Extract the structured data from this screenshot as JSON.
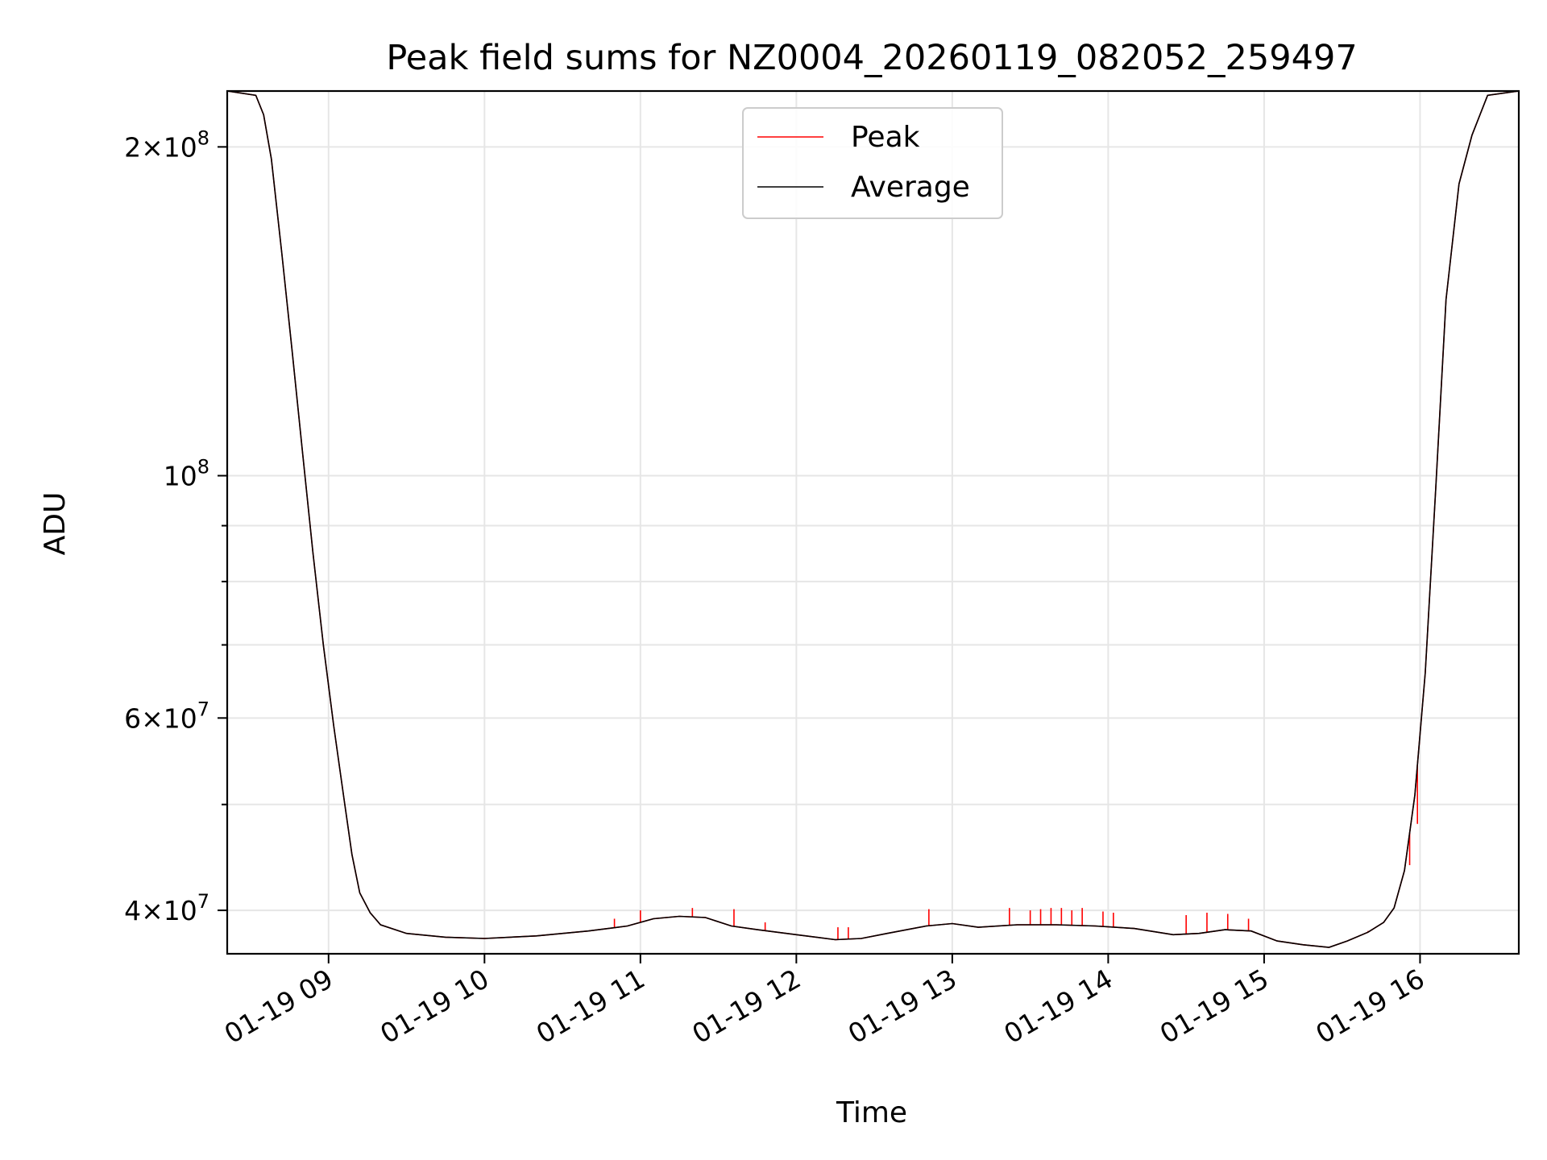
{
  "chart_data": {
    "type": "line",
    "title": "Peak field sums for NZ0004_20260119_082052_259497",
    "xlabel": "Time",
    "ylabel": "ADU",
    "y_scale": "log",
    "ylim": [
      36500000,
      225000000
    ],
    "xlim": [
      "2026-01-19 08:21",
      "2026-01-19 16:38"
    ],
    "grid": true,
    "legend_position": "upper center",
    "x_ticks": [
      {
        "value": "2026-01-19 09:00",
        "label": "01-19 09"
      },
      {
        "value": "2026-01-19 10:00",
        "label": "01-19 10"
      },
      {
        "value": "2026-01-19 11:00",
        "label": "01-19 11"
      },
      {
        "value": "2026-01-19 12:00",
        "label": "01-19 12"
      },
      {
        "value": "2026-01-19 13:00",
        "label": "01-19 13"
      },
      {
        "value": "2026-01-19 14:00",
        "label": "01-19 14"
      },
      {
        "value": "2026-01-19 15:00",
        "label": "01-19 15"
      },
      {
        "value": "2026-01-19 16:00",
        "label": "01-19 16"
      }
    ],
    "y_major_ticks": [
      {
        "value": 40000000,
        "mantissa": "4",
        "exponent": "7"
      },
      {
        "value": 60000000,
        "mantissa": "6",
        "exponent": "7"
      },
      {
        "value": 100000000,
        "mantissa": "",
        "exponent": "8"
      },
      {
        "value": 200000000,
        "mantissa": "2",
        "exponent": "8"
      }
    ],
    "y_minor_ticks": [
      50000000,
      70000000,
      80000000,
      90000000
    ],
    "series": [
      {
        "name": "Average",
        "color": "#000000",
        "x": [
          "2026-01-19 08:21",
          "2026-01-19 08:32",
          "2026-01-19 08:35",
          "2026-01-19 08:38",
          "2026-01-19 08:42",
          "2026-01-19 08:46",
          "2026-01-19 08:50",
          "2026-01-19 08:54",
          "2026-01-19 08:58",
          "2026-01-19 09:02",
          "2026-01-19 09:06",
          "2026-01-19 09:09",
          "2026-01-19 09:12",
          "2026-01-19 09:16",
          "2026-01-19 09:20",
          "2026-01-19 09:30",
          "2026-01-19 09:45",
          "2026-01-19 10:00",
          "2026-01-19 10:20",
          "2026-01-19 10:40",
          "2026-01-19 10:55",
          "2026-01-19 11:05",
          "2026-01-19 11:15",
          "2026-01-19 11:25",
          "2026-01-19 11:35",
          "2026-01-19 11:45",
          "2026-01-19 12:00",
          "2026-01-19 12:15",
          "2026-01-19 12:25",
          "2026-01-19 12:35",
          "2026-01-19 12:50",
          "2026-01-19 13:00",
          "2026-01-19 13:10",
          "2026-01-19 13:25",
          "2026-01-19 13:40",
          "2026-01-19 13:55",
          "2026-01-19 14:10",
          "2026-01-19 14:25",
          "2026-01-19 14:35",
          "2026-01-19 14:45",
          "2026-01-19 14:55",
          "2026-01-19 15:05",
          "2026-01-19 15:15",
          "2026-01-19 15:25",
          "2026-01-19 15:32",
          "2026-01-19 15:40",
          "2026-01-19 15:46",
          "2026-01-19 15:50",
          "2026-01-19 15:54",
          "2026-01-19 15:58",
          "2026-01-19 16:02",
          "2026-01-19 16:06",
          "2026-01-19 16:10",
          "2026-01-19 16:15",
          "2026-01-19 16:20",
          "2026-01-19 16:26",
          "2026-01-19 16:38"
        ],
        "y": [
          225000000,
          223000000,
          214000000,
          195000000,
          160000000,
          130000000,
          105000000,
          85000000,
          70000000,
          59000000,
          50500000,
          45000000,
          41500000,
          39800000,
          38800000,
          38100000,
          37800000,
          37700000,
          37900000,
          38300000,
          38700000,
          39300000,
          39500000,
          39400000,
          38700000,
          38400000,
          38000000,
          37600000,
          37700000,
          38100000,
          38700000,
          38900000,
          38600000,
          38800000,
          38800000,
          38700000,
          38500000,
          38000000,
          38100000,
          38400000,
          38300000,
          37500000,
          37200000,
          37000000,
          37500000,
          38200000,
          39000000,
          40200000,
          43500000,
          51000000,
          66000000,
          97000000,
          145000000,
          185000000,
          205000000,
          223000000,
          225000000
        ]
      },
      {
        "name": "Peak",
        "color": "#ff0000",
        "x": [
          "2026-01-19 08:21",
          "2026-01-19 08:32",
          "2026-01-19 08:35",
          "2026-01-19 08:38",
          "2026-01-19 08:42",
          "2026-01-19 08:46",
          "2026-01-19 08:50",
          "2026-01-19 08:54",
          "2026-01-19 08:58",
          "2026-01-19 09:02",
          "2026-01-19 09:06",
          "2026-01-19 09:09",
          "2026-01-19 09:12",
          "2026-01-19 09:16",
          "2026-01-19 09:20",
          "2026-01-19 09:30",
          "2026-01-19 09:45",
          "2026-01-19 10:00",
          "2026-01-19 10:20",
          "2026-01-19 10:40",
          "2026-01-19 10:55",
          "2026-01-19 11:05",
          "2026-01-19 11:15",
          "2026-01-19 11:25",
          "2026-01-19 11:35",
          "2026-01-19 11:45",
          "2026-01-19 12:00",
          "2026-01-19 12:15",
          "2026-01-19 12:25",
          "2026-01-19 12:35",
          "2026-01-19 12:50",
          "2026-01-19 13:00",
          "2026-01-19 13:10",
          "2026-01-19 13:25",
          "2026-01-19 13:40",
          "2026-01-19 13:55",
          "2026-01-19 14:10",
          "2026-01-19 14:25",
          "2026-01-19 14:35",
          "2026-01-19 14:45",
          "2026-01-19 14:55",
          "2026-01-19 15:05",
          "2026-01-19 15:15",
          "2026-01-19 15:25",
          "2026-01-19 15:32",
          "2026-01-19 15:40",
          "2026-01-19 15:46",
          "2026-01-19 15:50",
          "2026-01-19 15:54",
          "2026-01-19 15:58",
          "2026-01-19 16:02",
          "2026-01-19 16:06",
          "2026-01-19 16:10",
          "2026-01-19 16:15",
          "2026-01-19 16:20",
          "2026-01-19 16:26",
          "2026-01-19 16:38"
        ],
        "y": [
          225000000,
          223000000,
          214000000,
          195000000,
          160000000,
          130000000,
          105000000,
          85000000,
          70000000,
          59000000,
          50500000,
          45000000,
          41500000,
          39800000,
          38800000,
          38100000,
          37800000,
          37700000,
          37900000,
          38300000,
          38700000,
          39300000,
          39500000,
          39400000,
          38700000,
          38400000,
          38000000,
          37600000,
          37700000,
          38100000,
          38700000,
          38900000,
          38600000,
          38800000,
          38800000,
          38700000,
          38500000,
          38000000,
          38100000,
          38400000,
          38300000,
          37500000,
          37200000,
          37000000,
          37500000,
          38200000,
          39000000,
          40200000,
          43500000,
          51000000,
          66000000,
          97000000,
          145000000,
          185000000,
          205000000,
          223000000,
          225000000
        ],
        "spikes": [
          {
            "x": "2026-01-19 10:50",
            "y": 39300000
          },
          {
            "x": "2026-01-19 11:00",
            "y": 40000000
          },
          {
            "x": "2026-01-19 11:20",
            "y": 40200000
          },
          {
            "x": "2026-01-19 11:36",
            "y": 40100000
          },
          {
            "x": "2026-01-19 11:48",
            "y": 39000000
          },
          {
            "x": "2026-01-19 12:16",
            "y": 38600000
          },
          {
            "x": "2026-01-19 12:20",
            "y": 38600000
          },
          {
            "x": "2026-01-19 12:51",
            "y": 40100000
          },
          {
            "x": "2026-01-19 13:22",
            "y": 40200000
          },
          {
            "x": "2026-01-19 13:30",
            "y": 40000000
          },
          {
            "x": "2026-01-19 13:34",
            "y": 40100000
          },
          {
            "x": "2026-01-19 13:38",
            "y": 40200000
          },
          {
            "x": "2026-01-19 13:42",
            "y": 40200000
          },
          {
            "x": "2026-01-19 13:46",
            "y": 40000000
          },
          {
            "x": "2026-01-19 13:50",
            "y": 40200000
          },
          {
            "x": "2026-01-19 13:58",
            "y": 39900000
          },
          {
            "x": "2026-01-19 14:02",
            "y": 39800000
          },
          {
            "x": "2026-01-19 14:30",
            "y": 39600000
          },
          {
            "x": "2026-01-19 14:38",
            "y": 39800000
          },
          {
            "x": "2026-01-19 14:46",
            "y": 39700000
          },
          {
            "x": "2026-01-19 14:54",
            "y": 39300000
          },
          {
            "x": "2026-01-19 15:40",
            "y": 38300000
          },
          {
            "x": "2026-01-19 15:56",
            "y": 44000000
          },
          {
            "x": "2026-01-19 15:59",
            "y": 48000000
          }
        ]
      }
    ],
    "legend": [
      {
        "name": "Peak",
        "color": "#ff0000"
      },
      {
        "name": "Average",
        "color": "#000000"
      }
    ]
  }
}
